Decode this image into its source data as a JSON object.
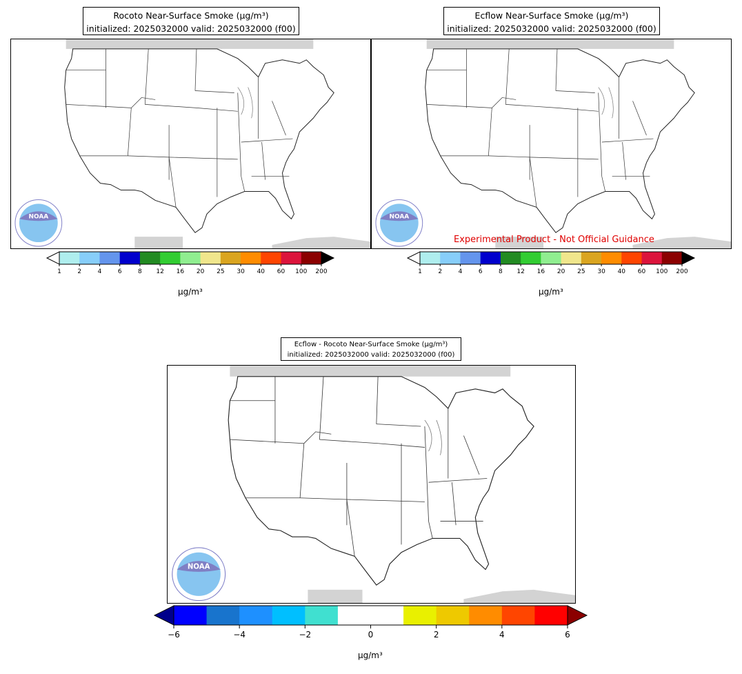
{
  "panels": [
    {
      "id": "rocoto",
      "title_line1": "Rocoto Near-Surface Smoke (µg/m³)",
      "title_line2": "initialized: 2025032000 valid: 2025032000 (f00)",
      "map_icon": "conus-map",
      "logo_text": "NOAA"
    },
    {
      "id": "ecflow",
      "title_line1": "Ecflow Near-Surface Smoke (µg/m³)",
      "title_line2": "initialized: 2025032000 valid: 2025032000 (f00)",
      "map_icon": "conus-map",
      "logo_text": "NOAA"
    },
    {
      "id": "diff",
      "title_line1": "Ecflow - Rocoto Near-Surface Smoke (µg/m³)",
      "title_line2": "initialized: 2025032000 valid: 2025032000 (f00)",
      "map_icon": "conus-map",
      "logo_text": "NOAA"
    }
  ],
  "watermark": "Experimental Product - Not Official Guidance",
  "smoke_colorbar": {
    "ticks": [
      "1",
      "2",
      "4",
      "6",
      "8",
      "12",
      "16",
      "20",
      "25",
      "30",
      "40",
      "60",
      "100",
      "200"
    ],
    "colors": [
      "#afeeee",
      "#87cefa",
      "#6495ed",
      "#0000cd",
      "#228b22",
      "#32cd32",
      "#90ee90",
      "#f0e68c",
      "#daa520",
      "#ff8c00",
      "#ff4500",
      "#dc143c",
      "#8b0000"
    ],
    "under_color": "#ffffff",
    "over_color": "#000000",
    "unit_label": "µg/m³"
  },
  "diff_colorbar": {
    "ticks": [
      "−6",
      "−4",
      "−2",
      "0",
      "2",
      "4",
      "6"
    ],
    "colors": [
      "#0000ff",
      "#1874cd",
      "#1e90ff",
      "#00bfff",
      "#40e0d0",
      "#ffffff",
      "#ffffff",
      "#e9f000",
      "#eec900",
      "#ff8c00",
      "#ff4500",
      "#ff0000"
    ],
    "under_color": "#00008b",
    "over_color": "#8b0000",
    "unit_label": "µg/m³"
  }
}
